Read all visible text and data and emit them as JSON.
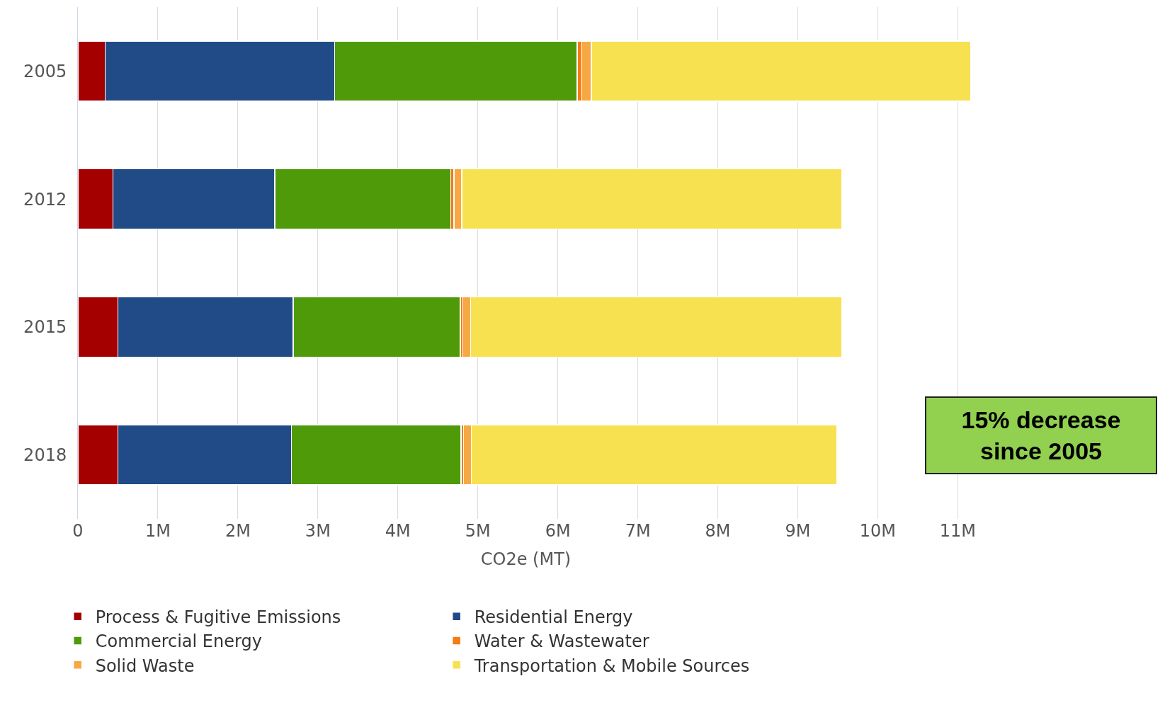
{
  "chart_data": {
    "type": "bar",
    "orientation": "horizontal",
    "stacked": true,
    "xlabel": "CO2e (MT)",
    "categories": [
      "2005",
      "2012",
      "2015",
      "2018"
    ],
    "series": [
      {
        "name": "Process & Fugitive Emissions",
        "color": "#a50000",
        "values": [
          340000,
          440000,
          500000,
          500000
        ]
      },
      {
        "name": "Residential Energy",
        "color": "#214b87",
        "values": [
          2870000,
          2020000,
          2190000,
          2170000
        ]
      },
      {
        "name": "Commercial Energy",
        "color": "#4f9a08",
        "values": [
          3030000,
          2200000,
          2090000,
          2120000
        ]
      },
      {
        "name": "Water & Wastewater",
        "color": "#f57c14",
        "values": [
          60000,
          40000,
          30000,
          30000
        ]
      },
      {
        "name": "Solid Waste",
        "color": "#f6a943",
        "values": [
          120000,
          100000,
          100000,
          100000
        ]
      },
      {
        "name": "Transportation & Mobile Sources",
        "color": "#f8e150",
        "values": [
          4740000,
          4750000,
          4640000,
          4570000
        ]
      }
    ],
    "xlim": [
      0,
      11200000
    ],
    "xticks": [
      0,
      {
        "value": 1000000,
        "label": "1M"
      },
      {
        "value": 2000000,
        "label": "2M"
      },
      {
        "value": 3000000,
        "label": "3M"
      },
      {
        "value": 4000000,
        "label": "4M"
      },
      {
        "value": 5000000,
        "label": "5M"
      },
      {
        "value": 6000000,
        "label": "6M"
      },
      {
        "value": 7000000,
        "label": "7M"
      },
      {
        "value": 8000000,
        "label": "8M"
      },
      {
        "value": 9000000,
        "label": "9M"
      },
      {
        "value": 10000000,
        "label": "10M"
      },
      {
        "value": 11000000,
        "label": "11M"
      }
    ],
    "grid": "x",
    "legend": "bottom",
    "annotations": [
      "15% decrease since 2005"
    ]
  }
}
